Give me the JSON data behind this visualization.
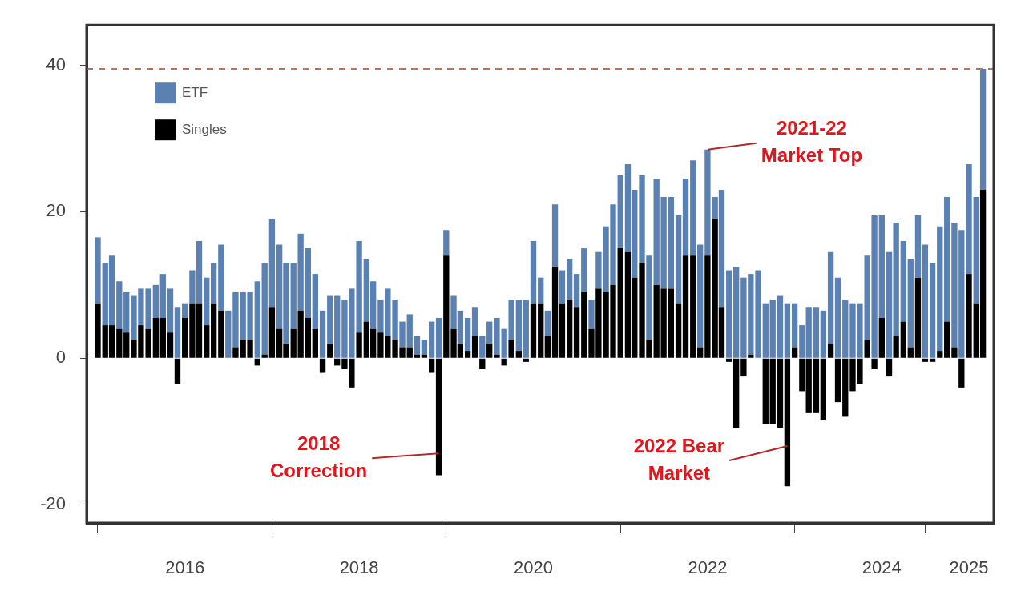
{
  "chart_data": {
    "type": "bar",
    "stacked": true,
    "legend": "top left",
    "grid": false,
    "x": [
      "2015-01",
      "2015-02",
      "2015-03",
      "2015-04",
      "2015-05",
      "2015-06",
      "2015-07",
      "2015-08",
      "2015-09",
      "2015-10",
      "2015-11",
      "2015-12",
      "2016-01",
      "2016-02",
      "2016-03",
      "2016-04",
      "2016-05",
      "2016-06",
      "2016-07",
      "2016-08",
      "2016-09",
      "2016-10",
      "2016-11",
      "2016-12",
      "2017-01",
      "2017-02",
      "2017-03",
      "2017-04",
      "2017-05",
      "2017-06",
      "2017-07",
      "2017-08",
      "2017-09",
      "2017-10",
      "2017-11",
      "2017-12",
      "2018-01",
      "2018-02",
      "2018-03",
      "2018-04",
      "2018-05",
      "2018-06",
      "2018-07",
      "2018-08",
      "2018-09",
      "2018-10",
      "2018-11",
      "2018-12",
      "2019-01",
      "2019-02",
      "2019-03",
      "2019-04",
      "2019-05",
      "2019-06",
      "2019-07",
      "2019-08",
      "2019-09",
      "2019-10",
      "2019-11",
      "2019-12",
      "2020-01",
      "2020-02",
      "2020-03",
      "2020-04",
      "2020-05",
      "2020-06",
      "2020-07",
      "2020-08",
      "2020-09",
      "2020-10",
      "2020-11",
      "2020-12",
      "2021-01",
      "2021-02",
      "2021-03",
      "2021-04",
      "2021-05",
      "2021-06",
      "2021-07",
      "2021-08",
      "2021-09",
      "2021-10",
      "2021-11",
      "2021-12",
      "2022-01",
      "2022-02",
      "2022-03",
      "2022-04",
      "2022-05",
      "2022-06",
      "2022-07",
      "2022-08",
      "2022-09",
      "2022-10",
      "2022-11",
      "2022-12",
      "2023-01",
      "2023-02",
      "2023-03",
      "2023-04",
      "2023-05",
      "2023-06",
      "2023-07",
      "2023-08",
      "2023-09",
      "2023-10",
      "2023-11",
      "2023-12",
      "2024-01",
      "2024-02",
      "2024-03",
      "2024-04",
      "2024-05",
      "2024-06",
      "2024-07",
      "2024-08",
      "2024-09",
      "2024-10",
      "2024-11",
      "2024-12",
      "2025-01",
      "2025-02",
      "2025-03"
    ],
    "series": [
      {
        "name": "Singles",
        "color": "#000000",
        "values": [
          7.5,
          4.5,
          4.5,
          4,
          3.5,
          2.5,
          4.5,
          4,
          5.5,
          5.5,
          3.5,
          -3.5,
          5.5,
          7.5,
          7.5,
          4.5,
          7.5,
          6.5,
          0,
          1.5,
          2.5,
          2.5,
          -1,
          0.5,
          7,
          4,
          2,
          4,
          6.5,
          5.5,
          4,
          -2,
          2,
          -1,
          -1.5,
          -4,
          3.5,
          5,
          4,
          3.5,
          3,
          2.5,
          1.5,
          1.5,
          0.5,
          0.5,
          -2,
          -16,
          14,
          4,
          2,
          1,
          3,
          -1.5,
          2,
          0.5,
          -1,
          2.5,
          1,
          -0.5,
          7.5,
          7.5,
          3,
          12.5,
          7.5,
          8,
          7,
          9,
          4,
          9.5,
          9,
          10,
          15,
          14.5,
          11,
          13,
          2.5,
          10,
          9.5,
          9.5,
          7.5,
          14,
          14,
          1.5,
          14,
          19,
          7,
          -0.5,
          -9.5,
          -2.5,
          0.5,
          0,
          -9,
          -9,
          -9.5,
          -17.5,
          1.5,
          -4.5,
          -7.5,
          -7.5,
          -8.5,
          2,
          -6,
          -8,
          -4.5,
          -3.5,
          2.5,
          -1.5,
          5.5,
          -2.5,
          3,
          5,
          1.5,
          11,
          -0.5,
          -0.5,
          1,
          5,
          1.5,
          -4,
          11.5,
          7.5,
          23
        ]
      },
      {
        "name": "ETF",
        "color": "#5b80b2",
        "values": [
          9,
          8.5,
          9.5,
          6.5,
          5.5,
          6,
          5,
          5.5,
          4.5,
          6,
          6,
          7,
          2,
          4.5,
          8.5,
          6.5,
          5.5,
          9,
          6.5,
          7.5,
          6.5,
          6.5,
          10.5,
          12.5,
          12,
          11.5,
          11,
          9,
          10.5,
          9.5,
          7.5,
          6.5,
          6.5,
          8.5,
          8,
          9.5,
          12.5,
          8.5,
          6.5,
          4.5,
          6.5,
          5.5,
          3.5,
          4.5,
          2.5,
          2,
          5,
          5.5,
          3.5,
          4.5,
          4.5,
          4.5,
          4,
          3,
          3,
          5,
          4,
          5.5,
          7,
          8,
          8.5,
          3.5,
          3.5,
          8.5,
          4.5,
          5.5,
          4.5,
          6,
          4,
          5,
          9,
          11,
          10,
          12,
          12,
          12,
          11.5,
          14.5,
          12.5,
          12.5,
          12,
          10.5,
          13,
          14,
          14.5,
          3,
          16,
          12,
          12.5,
          11,
          11,
          12,
          7.5,
          8,
          8.5,
          7.5,
          6,
          4.5,
          7,
          7,
          6.5,
          12.5,
          11,
          8,
          7.5,
          7.5,
          11.5,
          19.5,
          14,
          14.5,
          15.5,
          11,
          12,
          8.5,
          15.5,
          13,
          17,
          17,
          17,
          17.5,
          15,
          14.5,
          16.5
        ]
      }
    ],
    "xlim": [
      "2014-11-15",
      "2025-04-15"
    ],
    "xticks": [
      "2016",
      "2018",
      "2020",
      "2022",
      "2024",
      "2025"
    ],
    "ylim": [
      -22.5,
      45.5
    ],
    "yticks": [
      -20,
      0,
      20,
      40
    ],
    "ref_lines": [
      {
        "axis": "y",
        "value": 39.5,
        "color": "#b8735f",
        "line_style": "dashed"
      }
    ],
    "annotations": [
      {
        "text": "2021-22\nMarket Top",
        "x": "2022-01",
        "y": 28.5
      },
      {
        "text": "2018\nCorrection",
        "x": "2018-12",
        "y": -13
      },
      {
        "text": "2022 Bear\nMarket",
        "x": "2022-12",
        "y": -12
      }
    ]
  }
}
